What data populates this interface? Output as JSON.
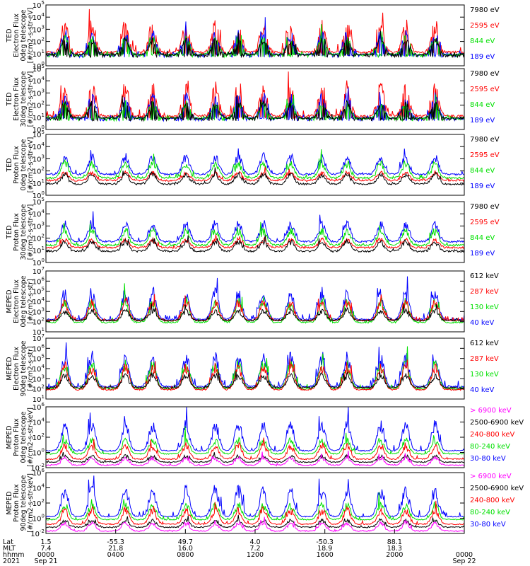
{
  "colors": {
    "black": "#000000",
    "red": "#ff0000",
    "green": "#00e000",
    "blue": "#0000ff",
    "magenta": "#ff00ff"
  },
  "chart_data": [
    {
      "type": "line",
      "ylabel": [
        "TED",
        "Electron Flux",
        "0deg telescope",
        "[#/cm2-s-str-eV]"
      ],
      "log_range": [
        0,
        5
      ],
      "tick_exps": [
        0,
        1,
        2,
        3,
        4,
        5
      ],
      "legend": [
        {
          "text": "7980 eV",
          "color": "black"
        },
        {
          "text": "2595 eV",
          "color": "red"
        },
        {
          "text": "844 eV",
          "color": "green"
        },
        {
          "text": "189 eV",
          "color": "blue"
        }
      ],
      "series": [
        {
          "color": "red",
          "base": 1.2,
          "amp": 2.8
        },
        {
          "color": "blue",
          "base": 1.0,
          "amp": 2.0
        },
        {
          "color": "green",
          "base": 1.0,
          "amp": 1.6
        },
        {
          "color": "black",
          "base": 1.0,
          "amp": 1.5
        }
      ]
    },
    {
      "type": "line",
      "ylabel": [
        "TED",
        "Electron Flux",
        "30deg telescope",
        "[#/cm2-s-str-eV]"
      ],
      "log_range": [
        0,
        5
      ],
      "tick_exps": [
        0,
        1,
        2,
        3,
        4,
        5
      ],
      "legend": [
        {
          "text": "7980 eV",
          "color": "black"
        },
        {
          "text": "2595 eV",
          "color": "red"
        },
        {
          "text": "844 eV",
          "color": "green"
        },
        {
          "text": "189 eV",
          "color": "blue"
        }
      ],
      "series": [
        {
          "color": "red",
          "base": 1.2,
          "amp": 2.9
        },
        {
          "color": "blue",
          "base": 1.0,
          "amp": 2.2
        },
        {
          "color": "green",
          "base": 1.0,
          "amp": 1.5
        },
        {
          "color": "black",
          "base": 1.0,
          "amp": 1.5
        }
      ]
    },
    {
      "type": "line",
      "ylabel": [
        "TED",
        "Proton Flux",
        "0deg telescope",
        "[#/cm2-s-str-eV]"
      ],
      "log_range": [
        0,
        5
      ],
      "tick_exps": [
        0,
        1,
        2,
        3,
        4,
        5
      ],
      "legend": [
        {
          "text": "7980 eV",
          "color": "black"
        },
        {
          "text": "2595 eV",
          "color": "red"
        },
        {
          "text": "844 eV",
          "color": "green"
        },
        {
          "text": "189 eV",
          "color": "blue"
        }
      ],
      "series": [
        {
          "color": "blue",
          "base": 1.8,
          "amp": 1.8
        },
        {
          "color": "red",
          "base": 1.3,
          "amp": 0.8
        },
        {
          "color": "black",
          "base": 1.0,
          "amp": 1.0
        },
        {
          "color": "green",
          "base": 1.5,
          "amp": 1.5
        }
      ]
    },
    {
      "type": "line",
      "ylabel": [
        "TED",
        "Proton Flux",
        "30deg telescope",
        "[#/cm2-s-str-eV]"
      ],
      "log_range": [
        0,
        5
      ],
      "tick_exps": [
        0,
        1,
        2,
        3,
        4,
        5
      ],
      "legend": [
        {
          "text": "7980 eV",
          "color": "black"
        },
        {
          "text": "2595 eV",
          "color": "red"
        },
        {
          "text": "844 eV",
          "color": "green"
        },
        {
          "text": "189 eV",
          "color": "blue"
        }
      ],
      "series": [
        {
          "color": "blue",
          "base": 1.8,
          "amp": 1.8
        },
        {
          "color": "red",
          "base": 1.3,
          "amp": 0.8
        },
        {
          "color": "black",
          "base": 1.0,
          "amp": 1.0
        },
        {
          "color": "green",
          "base": 1.5,
          "amp": 1.5
        }
      ]
    },
    {
      "type": "line",
      "ylabel": [
        "MEPED",
        "Electron Flux",
        "0deg telescope",
        "[#/cm2-s-str]"
      ],
      "log_range": [
        1,
        7
      ],
      "tick_exps": [
        1,
        2,
        3,
        4,
        5,
        6,
        7
      ],
      "legend": [
        {
          "text": "612 keV",
          "color": "black"
        },
        {
          "text": "287 keV",
          "color": "red"
        },
        {
          "text": "130 keV",
          "color": "green"
        },
        {
          "text": "40 keV",
          "color": "blue"
        }
      ],
      "series": [
        {
          "color": "blue",
          "base": 2.3,
          "amp": 3.2
        },
        {
          "color": "green",
          "base": 2.0,
          "amp": 2.6
        },
        {
          "color": "red",
          "base": 2.2,
          "amp": 2.2
        },
        {
          "color": "black",
          "base": 2.2,
          "amp": 1.2
        }
      ]
    },
    {
      "type": "line",
      "ylabel": [
        "MEPED",
        "Electron Flux",
        "90deg telescope",
        "[#/cm2-s-str]"
      ],
      "log_range": [
        1,
        7
      ],
      "tick_exps": [
        1,
        2,
        3,
        4,
        5,
        6,
        7
      ],
      "legend": [
        {
          "text": "612 keV",
          "color": "black"
        },
        {
          "text": "287 keV",
          "color": "red"
        },
        {
          "text": "130 keV",
          "color": "green"
        },
        {
          "text": "40 keV",
          "color": "blue"
        }
      ],
      "series": [
        {
          "color": "blue",
          "base": 2.3,
          "amp": 3.5
        },
        {
          "color": "green",
          "base": 2.1,
          "amp": 3.0
        },
        {
          "color": "red",
          "base": 2.0,
          "amp": 2.8
        },
        {
          "color": "black",
          "base": 2.2,
          "amp": 1.5
        }
      ]
    },
    {
      "type": "line",
      "ylabel": [
        "MEPED",
        "Proton Flux",
        "0deg telescope",
        "[#/cm2-s-str-keV]"
      ],
      "log_range": [
        -2,
        6
      ],
      "tick_exps": [
        -2,
        0,
        2,
        4,
        6
      ],
      "legend": [
        {
          "text": "> 6900 keV",
          "color": "magenta"
        },
        {
          "text": "2500-6900 keV",
          "color": "black"
        },
        {
          "text": "240-800 keV",
          "color": "red"
        },
        {
          "text": "80-240 keV",
          "color": "green"
        },
        {
          "text": "30-80 keV",
          "color": "blue"
        }
      ],
      "series": [
        {
          "color": "blue",
          "base": 0.3,
          "amp": 4.2
        },
        {
          "color": "green",
          "base": -0.1,
          "amp": 2.2
        },
        {
          "color": "red",
          "base": -0.8,
          "amp": 2.2
        },
        {
          "color": "black",
          "base": -1.2,
          "amp": 1.0
        },
        {
          "color": "magenta",
          "base": -1.6,
          "amp": 1.2
        }
      ]
    },
    {
      "type": "line",
      "ylabel": [
        "MEPED",
        "Proton Flux",
        "90deg telescope",
        "[#/cm2-s-str-keV]"
      ],
      "log_range": [
        -2,
        6
      ],
      "tick_exps": [
        -2,
        0,
        2,
        4,
        6
      ],
      "legend": [
        {
          "text": "> 6900 keV",
          "color": "magenta"
        },
        {
          "text": "2500-6900 keV",
          "color": "black"
        },
        {
          "text": "240-800 keV",
          "color": "red"
        },
        {
          "text": "80-240 keV",
          "color": "green"
        },
        {
          "text": "30-80 keV",
          "color": "blue"
        }
      ],
      "series": [
        {
          "color": "blue",
          "base": 0.3,
          "amp": 4.3
        },
        {
          "color": "green",
          "base": -0.1,
          "amp": 2.4
        },
        {
          "color": "red",
          "base": -0.7,
          "amp": 2.3
        },
        {
          "color": "black",
          "base": -1.1,
          "amp": 1.1
        },
        {
          "color": "magenta",
          "base": -1.6,
          "amp": 1.3
        }
      ]
    }
  ],
  "x_axis": {
    "row_labels": [
      "Lat",
      "MLT",
      "hhmm",
      "2021"
    ],
    "ticks": [
      {
        "frac": 0.0,
        "lines": [
          "1.5",
          "7.4",
          "0000",
          "Sep 21"
        ]
      },
      {
        "frac": 0.1667,
        "lines": [
          "-55.3",
          "21.8",
          "0400",
          ""
        ]
      },
      {
        "frac": 0.3333,
        "lines": [
          "49.7",
          "16.0",
          "0800",
          ""
        ]
      },
      {
        "frac": 0.5,
        "lines": [
          "4.0",
          "7.2",
          "1200",
          ""
        ]
      },
      {
        "frac": 0.6667,
        "lines": [
          "-50.3",
          "18.9",
          "1600",
          ""
        ]
      },
      {
        "frac": 0.8333,
        "lines": [
          "88.1",
          "18.3",
          "2000",
          ""
        ]
      },
      {
        "frac": 1.0,
        "lines": [
          "",
          "",
          "0000",
          "Sep 22"
        ]
      }
    ]
  }
}
